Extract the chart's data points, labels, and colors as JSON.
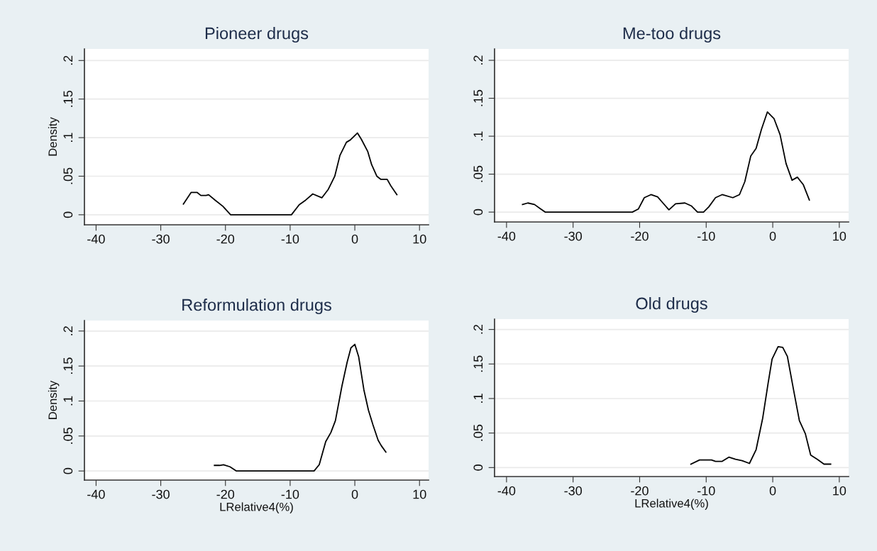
{
  "chart_data": [
    {
      "type": "line",
      "title": "Pioneer drugs",
      "ylabel": "Density",
      "xlim": [
        -41.8,
        11.4
      ],
      "ylim": [
        -0.013,
        0.215
      ],
      "xticks": [
        -40,
        -30,
        -20,
        -10,
        0,
        10
      ],
      "yticks": [
        0,
        {
          "value": 0.05,
          "label": ".05"
        },
        {
          "value": 0.1,
          "label": ".1"
        },
        {
          "value": 0.15,
          "label": ".15"
        },
        {
          "value": 0.2,
          "label": ".2"
        }
      ],
      "grid": "y",
      "series": [
        {
          "color": "#000000",
          "x": [
            -26.5,
            -25.3,
            -24.4,
            -23.8,
            -23.0,
            -22.6,
            -21.6,
            -20.4,
            -19.2,
            -9.8,
            -8.6,
            -7.6,
            -6.5,
            -5.1,
            -4.1,
            -3.1,
            -2.3,
            -1.3,
            -0.7,
            0.4,
            1.0,
            2.0,
            2.6,
            3.4,
            4.0,
            5.0,
            5.6,
            6.5
          ],
          "values": [
            0.014,
            0.029,
            0.029,
            0.025,
            0.025,
            0.026,
            0.019,
            0.011,
            0,
            0,
            0.013,
            0.019,
            0.027,
            0.022,
            0.033,
            0.05,
            0.077,
            0.094,
            0.097,
            0.106,
            0.098,
            0.082,
            0.065,
            0.05,
            0.046,
            0.046,
            0.037,
            0.026
          ]
        }
      ]
    },
    {
      "type": "line",
      "title": "Me-too drugs",
      "xlim": [
        -41.8,
        11.4
      ],
      "ylim": [
        -0.013,
        0.215
      ],
      "xticks": [
        -40,
        -30,
        -20,
        -10,
        0,
        10
      ],
      "yticks": [
        0,
        {
          "value": 0.05,
          "label": ".05"
        },
        {
          "value": 0.1,
          "label": ".1"
        },
        {
          "value": 0.15,
          "label": ".15"
        },
        {
          "value": 0.2,
          "label": ".2"
        }
      ],
      "grid": "y",
      "series": [
        {
          "color": "#000000",
          "x": [
            -37.6,
            -36.8,
            -35.8,
            -34.2,
            -21.1,
            -20.2,
            -19.3,
            -18.3,
            -17.3,
            -16.5,
            -15.6,
            -14.6,
            -13.2,
            -12.2,
            -11.3,
            -10.4,
            -9.6,
            -8.6,
            -7.6,
            -6.0,
            -5.0,
            -4.2,
            -3.3,
            -2.5,
            -1.7,
            -0.8,
            0.2,
            1.1,
            2.0,
            2.9,
            3.7,
            4.6,
            5.5
          ],
          "values": [
            0.01,
            0.012,
            0.01,
            0,
            0,
            0.004,
            0.019,
            0.023,
            0.02,
            0.012,
            0.003,
            0.011,
            0.012,
            0.008,
            0,
            0,
            0.007,
            0.019,
            0.023,
            0.019,
            0.023,
            0.04,
            0.074,
            0.084,
            0.109,
            0.132,
            0.123,
            0.102,
            0.064,
            0.042,
            0.046,
            0.036,
            0.016
          ]
        }
      ]
    },
    {
      "type": "line",
      "title": "Reformulation drugs",
      "ylabel": "Density",
      "xlabel": "LRelative4(%)",
      "xlim": [
        -41.8,
        11.4
      ],
      "ylim": [
        -0.013,
        0.215
      ],
      "xticks": [
        -40,
        -30,
        -20,
        -10,
        0,
        10
      ],
      "yticks": [
        0,
        {
          "value": 0.05,
          "label": ".05"
        },
        {
          "value": 0.1,
          "label": ".1"
        },
        {
          "value": 0.15,
          "label": ".15"
        },
        {
          "value": 0.2,
          "label": ".2"
        }
      ],
      "grid": "y",
      "series": [
        {
          "color": "#000000",
          "x": [
            -21.7,
            -20.9,
            -20.3,
            -19.3,
            -18.3,
            -6.3,
            -5.5,
            -4.5,
            -3.7,
            -3.0,
            -2.0,
            -1.2,
            -0.6,
            0,
            0.6,
            1.4,
            2.1,
            2.8,
            3.6,
            4.1,
            4.8
          ],
          "values": [
            0.008,
            0.008,
            0.009,
            0.006,
            0,
            0,
            0.009,
            0.042,
            0.055,
            0.072,
            0.121,
            0.155,
            0.176,
            0.181,
            0.163,
            0.116,
            0.087,
            0.066,
            0.044,
            0.036,
            0.027
          ]
        }
      ]
    },
    {
      "type": "line",
      "title": "Old drugs",
      "xlabel": "LRelative4(%)",
      "xlim": [
        -41.8,
        11.4
      ],
      "ylim": [
        -0.013,
        0.215
      ],
      "xticks": [
        -40,
        -30,
        -20,
        -10,
        0,
        10
      ],
      "yticks": [
        0,
        {
          "value": 0.05,
          "label": ".05"
        },
        {
          "value": 0.1,
          "label": ".1"
        },
        {
          "value": 0.15,
          "label": ".15"
        },
        {
          "value": 0.2,
          "label": ".2"
        }
      ],
      "grid": "y",
      "series": [
        {
          "color": "#000000",
          "x": [
            -12.3,
            -11.0,
            -9.2,
            -8.6,
            -7.6,
            -6.6,
            -5.6,
            -4.6,
            -3.5,
            -2.5,
            -1.5,
            -0.7,
            -0.1,
            0.8,
            1.5,
            2.2,
            3.1,
            4.0,
            4.9,
            5.7,
            6.7,
            7.7,
            8.7
          ],
          "values": [
            0.005,
            0.011,
            0.011,
            0.009,
            0.009,
            0.015,
            0.012,
            0.01,
            0.006,
            0.026,
            0.072,
            0.122,
            0.157,
            0.175,
            0.174,
            0.161,
            0.114,
            0.068,
            0.049,
            0.018,
            0.012,
            0.005,
            0.005
          ]
        }
      ]
    }
  ]
}
